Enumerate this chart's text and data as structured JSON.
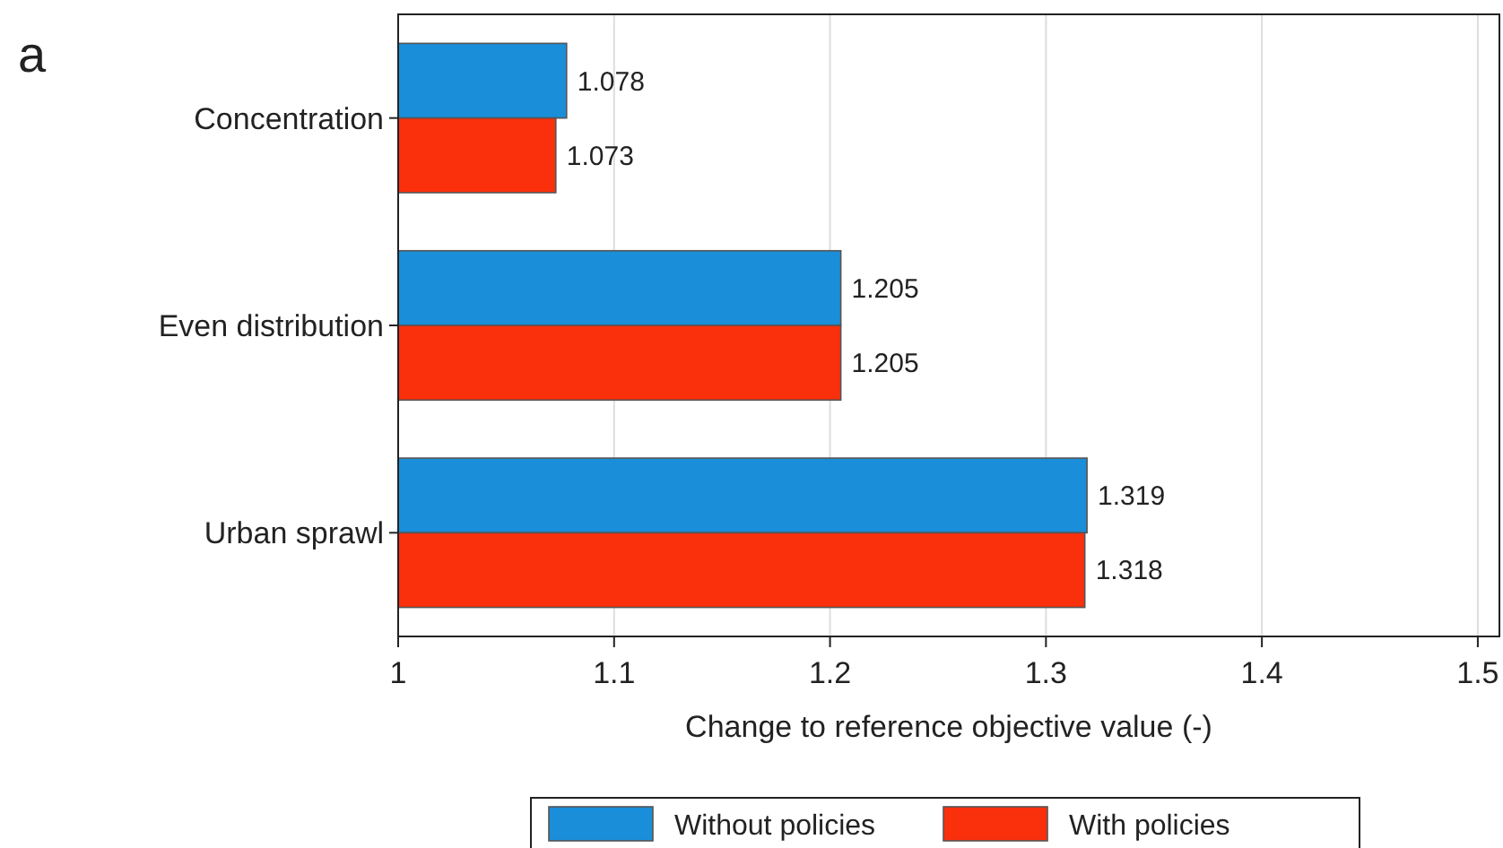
{
  "chart_data": {
    "type": "bar",
    "orientation": "horizontal",
    "xlabel": "Change to reference objective value (-)",
    "annotations": [
      "a"
    ],
    "categories": [
      "Concentration",
      "Even distribution",
      "Urban sprawl"
    ],
    "series": [
      {
        "name": "Without policies",
        "color": "#1a8ed8",
        "values": [
          1.078,
          1.205,
          1.319
        ]
      },
      {
        "name": "With policies",
        "color": "#fa2f0c",
        "values": [
          1.073,
          1.205,
          1.318
        ]
      }
    ],
    "xlim": [
      1,
      1.51
    ],
    "xticks": [
      1,
      1.1,
      1.2,
      1.3,
      1.4,
      1.5
    ],
    "grid": "x",
    "legend": "bottom",
    "data_labels": true
  }
}
